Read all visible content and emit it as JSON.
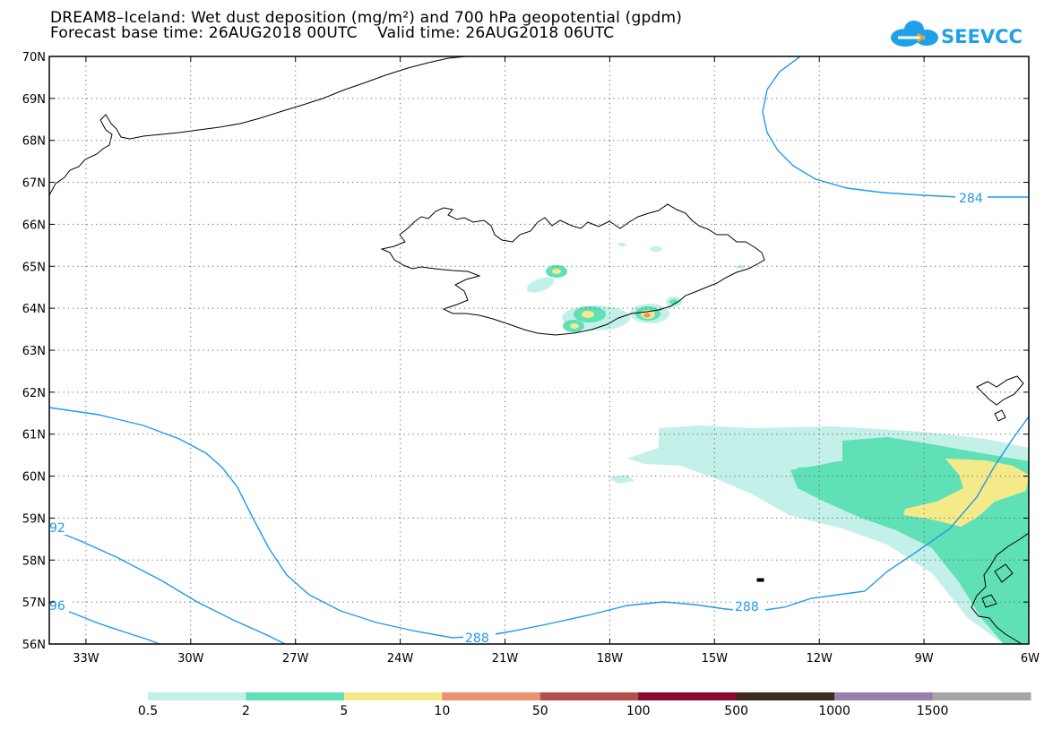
{
  "title_line1": "DREAM8–Iceland: Wet dust deposition (mg/m²) and 700 hPa geopotential (gpdm)",
  "title_line2": "Forecast base time: 26AUG2018 00UTC    Valid time: 26AUG2018 06UTC",
  "logo_text": "SEEVCCC",
  "logo_icon": "cloud-icon",
  "lat_labels": [
    "70N",
    "69N",
    "68N",
    "67N",
    "66N",
    "65N",
    "64N",
    "63N",
    "62N",
    "61N",
    "60N",
    "59N",
    "58N",
    "57N",
    "56N"
  ],
  "lon_labels": [
    "33W",
    "30W",
    "27W",
    "24W",
    "21W",
    "18W",
    "15W",
    "12W",
    "9W",
    "6W"
  ],
  "contour_labels": [
    "284",
    "288",
    "288",
    "92",
    "96"
  ],
  "colorbar": {
    "labels": [
      "0.5",
      "2",
      "5",
      "10",
      "50",
      "100",
      "500",
      "1000",
      "1500"
    ],
    "colors": [
      "#c3f0e8",
      "#5fe0b6",
      "#f5ea8a",
      "#eb9273",
      "#b4504b",
      "#8a0a30",
      "#3e2a1e",
      "#9b7fab",
      "#a5a5a5"
    ]
  },
  "colors": {
    "contour": "#1e9bea",
    "coast": "#000000",
    "grid": "#555555"
  }
}
